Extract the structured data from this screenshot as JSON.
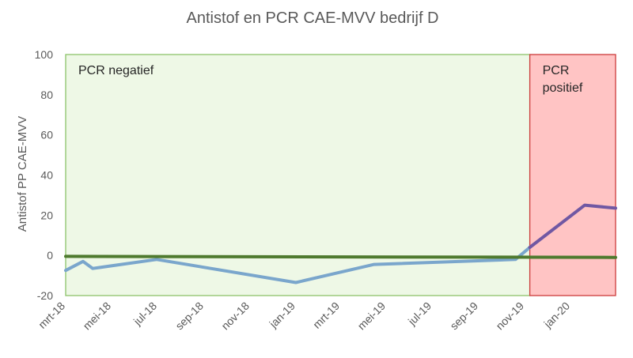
{
  "chart_data": {
    "type": "line",
    "title": "Antistof  en PCR CAE-MVV bedrijf D",
    "ylabel": "Antistof PP CAE-MVV",
    "xlabel": "",
    "ylim": [
      -20,
      100
    ],
    "yticks": [
      -20,
      0,
      20,
      40,
      60,
      80,
      100
    ],
    "x_tick_labels": [
      "mrt-18",
      "mei-18",
      "jul-18",
      "sep-18",
      "nov-18",
      "jan-19",
      "mrt-19",
      "mei-19",
      "jul-19",
      "sep-19",
      "nov-19",
      "jan-20"
    ],
    "x_range": [
      "2018-03-01",
      "2020-03-01"
    ],
    "grid": "horizontal",
    "series": [
      {
        "color": "#7aa6cc",
        "points": [
          {
            "x": "2018-03-01",
            "y": -7.5
          },
          {
            "x": "2018-03-24",
            "y": -3
          },
          {
            "x": "2018-04-06",
            "y": -6.5
          },
          {
            "x": "2018-06-30",
            "y": -2
          },
          {
            "x": "2019-01-01",
            "y": -13.5
          },
          {
            "x": "2019-04-15",
            "y": -4.5
          },
          {
            "x": "2019-10-20",
            "y": -2
          },
          {
            "x": "2019-11-08",
            "y": 4
          }
        ]
      },
      {
        "color": "#7058a3",
        "points": [
          {
            "x": "2019-11-08",
            "y": 4
          },
          {
            "x": "2020-01-20",
            "y": 25
          },
          {
            "x": "2020-03-01",
            "y": 23.5
          }
        ]
      },
      {
        "color": "#4e7a2e",
        "points": [
          {
            "x": "2018-03-01",
            "y": -0.5
          },
          {
            "x": "2020-03-01",
            "y": -1
          }
        ]
      }
    ],
    "regions": [
      {
        "label": "PCR negatief",
        "x_start": "2018-03-01",
        "x_end": "2019-11-08",
        "fill": "#eef8e6",
        "stroke": "#8dc26a"
      },
      {
        "label": "PCR\npositief",
        "x_start": "2019-11-08",
        "x_end": "2020-03-01",
        "fill": "#ffc4c4",
        "stroke": "#cc3b3b"
      }
    ]
  }
}
